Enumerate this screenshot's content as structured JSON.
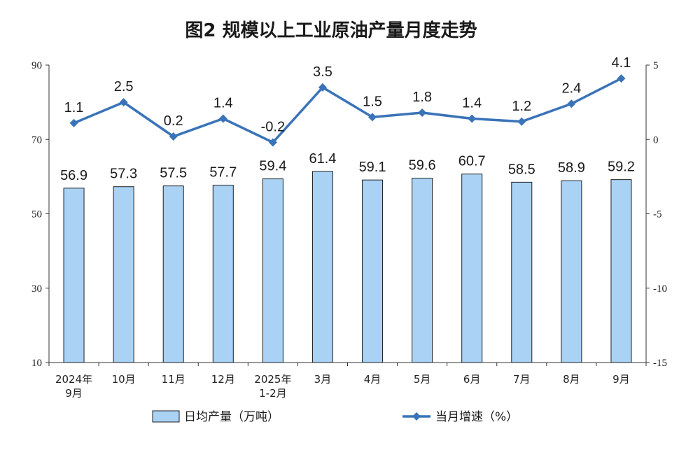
{
  "chart_data": {
    "type": "bar",
    "title": "图2  规模以上工业原油产量月度走势",
    "categories": [
      [
        "2024年",
        "9月"
      ],
      [
        "10月"
      ],
      [
        "11月"
      ],
      [
        "12月"
      ],
      [
        "2025年",
        "1-2月"
      ],
      [
        "3月"
      ],
      [
        "4月"
      ],
      [
        "5月"
      ],
      [
        "6月"
      ],
      [
        "7月"
      ],
      [
        "8月"
      ],
      [
        "9月"
      ]
    ],
    "series": [
      {
        "name": "日均产量（万吨）",
        "type": "bar",
        "axis": "left",
        "color": "#a9d2f5",
        "values": [
          56.9,
          57.3,
          57.5,
          57.7,
          59.4,
          61.4,
          59.1,
          59.6,
          60.7,
          58.5,
          58.9,
          59.2
        ]
      },
      {
        "name": "当月增速（%）",
        "type": "line",
        "axis": "right",
        "color": "#3a73b8",
        "values": [
          1.1,
          2.5,
          0.2,
          1.4,
          -0.2,
          3.5,
          1.5,
          1.8,
          1.4,
          1.2,
          2.4,
          4.1
        ]
      }
    ],
    "yleft": {
      "min": 10,
      "max": 90,
      "ticks": [
        "10",
        "30",
        "50",
        "70",
        "90"
      ]
    },
    "yright": {
      "min": -15,
      "max": 5,
      "ticks": [
        "-15",
        "-10",
        "-5",
        "0",
        "5"
      ]
    },
    "grid": false,
    "legend": "bottom"
  }
}
